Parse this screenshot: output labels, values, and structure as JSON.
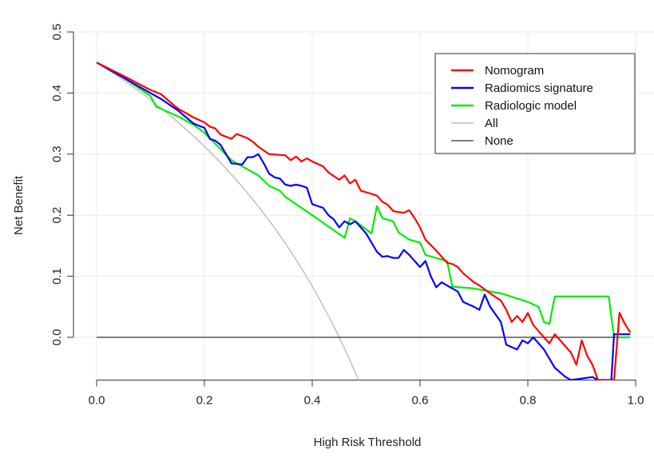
{
  "chart_data": {
    "type": "line",
    "title": "",
    "xlabel": "High Risk Threshold",
    "ylabel": "Net Benefit",
    "xlim": [
      0.0,
      1.0
    ],
    "ylim": [
      -0.07,
      0.5
    ],
    "x_ticks": [
      "0.0",
      "0.2",
      "0.4",
      "0.6",
      "0.8",
      "1.0"
    ],
    "y_ticks": [
      "0.0",
      "0.1",
      "0.2",
      "0.3",
      "0.4",
      "0.5"
    ],
    "grid": true,
    "legend_position": "top-right",
    "series": [
      {
        "name": "Nomogram",
        "color": "#ff0000",
        "points": [
          [
            0.0,
            0.45
          ],
          [
            0.05,
            0.428
          ],
          [
            0.1,
            0.405
          ],
          [
            0.12,
            0.398
          ],
          [
            0.13,
            0.39
          ],
          [
            0.15,
            0.375
          ],
          [
            0.18,
            0.36
          ],
          [
            0.2,
            0.352
          ],
          [
            0.21,
            0.345
          ],
          [
            0.22,
            0.342
          ],
          [
            0.23,
            0.332
          ],
          [
            0.25,
            0.325
          ],
          [
            0.26,
            0.333
          ],
          [
            0.28,
            0.326
          ],
          [
            0.29,
            0.32
          ],
          [
            0.3,
            0.312
          ],
          [
            0.32,
            0.3
          ],
          [
            0.35,
            0.298
          ],
          [
            0.36,
            0.29
          ],
          [
            0.37,
            0.296
          ],
          [
            0.38,
            0.288
          ],
          [
            0.39,
            0.293
          ],
          [
            0.4,
            0.288
          ],
          [
            0.42,
            0.28
          ],
          [
            0.43,
            0.27
          ],
          [
            0.45,
            0.258
          ],
          [
            0.46,
            0.265
          ],
          [
            0.47,
            0.252
          ],
          [
            0.48,
            0.258
          ],
          [
            0.49,
            0.24
          ],
          [
            0.51,
            0.235
          ],
          [
            0.52,
            0.232
          ],
          [
            0.53,
            0.222
          ],
          [
            0.54,
            0.217
          ],
          [
            0.55,
            0.207
          ],
          [
            0.56,
            0.205
          ],
          [
            0.57,
            0.204
          ],
          [
            0.58,
            0.208
          ],
          [
            0.59,
            0.195
          ],
          [
            0.6,
            0.18
          ],
          [
            0.61,
            0.16
          ],
          [
            0.63,
            0.142
          ],
          [
            0.65,
            0.122
          ],
          [
            0.66,
            0.12
          ],
          [
            0.67,
            0.115
          ],
          [
            0.68,
            0.105
          ],
          [
            0.7,
            0.09
          ],
          [
            0.71,
            0.085
          ],
          [
            0.73,
            0.072
          ],
          [
            0.75,
            0.06
          ],
          [
            0.76,
            0.045
          ],
          [
            0.77,
            0.025
          ],
          [
            0.78,
            0.035
          ],
          [
            0.79,
            0.025
          ],
          [
            0.8,
            0.04
          ],
          [
            0.81,
            0.02
          ],
          [
            0.83,
            0.0
          ],
          [
            0.84,
            -0.01
          ],
          [
            0.85,
            0.005
          ],
          [
            0.87,
            -0.015
          ],
          [
            0.88,
            -0.025
          ],
          [
            0.89,
            -0.045
          ],
          [
            0.9,
            -0.005
          ],
          [
            0.91,
            -0.03
          ],
          [
            0.92,
            -0.045
          ],
          [
            0.93,
            -0.07
          ],
          [
            0.955,
            -0.07
          ],
          [
            0.96,
            -0.07
          ],
          [
            0.97,
            0.04
          ],
          [
            0.98,
            0.022
          ],
          [
            0.99,
            0.008
          ]
        ]
      },
      {
        "name": "Radiomics signature",
        "color": "#0000ff",
        "points": [
          [
            0.0,
            0.45
          ],
          [
            0.05,
            0.425
          ],
          [
            0.1,
            0.4
          ],
          [
            0.12,
            0.39
          ],
          [
            0.15,
            0.372
          ],
          [
            0.18,
            0.35
          ],
          [
            0.2,
            0.343
          ],
          [
            0.21,
            0.325
          ],
          [
            0.22,
            0.322
          ],
          [
            0.23,
            0.315
          ],
          [
            0.25,
            0.285
          ],
          [
            0.27,
            0.283
          ],
          [
            0.28,
            0.295
          ],
          [
            0.29,
            0.295
          ],
          [
            0.3,
            0.3
          ],
          [
            0.31,
            0.285
          ],
          [
            0.32,
            0.268
          ],
          [
            0.33,
            0.262
          ],
          [
            0.34,
            0.26
          ],
          [
            0.35,
            0.25
          ],
          [
            0.36,
            0.248
          ],
          [
            0.37,
            0.25
          ],
          [
            0.38,
            0.248
          ],
          [
            0.39,
            0.245
          ],
          [
            0.4,
            0.218
          ],
          [
            0.42,
            0.212
          ],
          [
            0.43,
            0.2
          ],
          [
            0.44,
            0.193
          ],
          [
            0.45,
            0.18
          ],
          [
            0.46,
            0.19
          ],
          [
            0.47,
            0.185
          ],
          [
            0.48,
            0.19
          ],
          [
            0.5,
            0.17
          ],
          [
            0.52,
            0.14
          ],
          [
            0.53,
            0.132
          ],
          [
            0.54,
            0.133
          ],
          [
            0.55,
            0.13
          ],
          [
            0.56,
            0.13
          ],
          [
            0.57,
            0.143
          ],
          [
            0.58,
            0.135
          ],
          [
            0.6,
            0.115
          ],
          [
            0.61,
            0.125
          ],
          [
            0.62,
            0.1
          ],
          [
            0.63,
            0.082
          ],
          [
            0.64,
            0.09
          ],
          [
            0.65,
            0.085
          ],
          [
            0.66,
            0.08
          ],
          [
            0.67,
            0.075
          ],
          [
            0.68,
            0.058
          ],
          [
            0.7,
            0.05
          ],
          [
            0.71,
            0.045
          ],
          [
            0.72,
            0.07
          ],
          [
            0.73,
            0.05
          ],
          [
            0.75,
            0.025
          ],
          [
            0.76,
            -0.012
          ],
          [
            0.78,
            -0.02
          ],
          [
            0.79,
            -0.005
          ],
          [
            0.8,
            -0.01
          ],
          [
            0.81,
            0.0
          ],
          [
            0.83,
            -0.02
          ],
          [
            0.85,
            -0.05
          ],
          [
            0.87,
            -0.065
          ],
          [
            0.88,
            -0.07
          ],
          [
            0.92,
            -0.065
          ],
          [
            0.93,
            -0.07
          ],
          [
            0.955,
            -0.07
          ],
          [
            0.96,
            0.005
          ],
          [
            0.99,
            0.005
          ]
        ]
      },
      {
        "name": "Radiologic model",
        "color": "#00ee00",
        "points": [
          [
            0.0,
            0.45
          ],
          [
            0.05,
            0.425
          ],
          [
            0.1,
            0.395
          ],
          [
            0.11,
            0.378
          ],
          [
            0.15,
            0.362
          ],
          [
            0.18,
            0.348
          ],
          [
            0.2,
            0.335
          ],
          [
            0.25,
            0.29
          ],
          [
            0.3,
            0.265
          ],
          [
            0.32,
            0.248
          ],
          [
            0.34,
            0.24
          ],
          [
            0.35,
            0.23
          ],
          [
            0.4,
            0.2
          ],
          [
            0.46,
            0.163
          ],
          [
            0.47,
            0.195
          ],
          [
            0.48,
            0.19
          ],
          [
            0.51,
            0.17
          ],
          [
            0.52,
            0.215
          ],
          [
            0.53,
            0.195
          ],
          [
            0.55,
            0.19
          ],
          [
            0.56,
            0.172
          ],
          [
            0.58,
            0.16
          ],
          [
            0.6,
            0.155
          ],
          [
            0.61,
            0.135
          ],
          [
            0.65,
            0.125
          ],
          [
            0.66,
            0.083
          ],
          [
            0.7,
            0.08
          ],
          [
            0.75,
            0.072
          ],
          [
            0.8,
            0.058
          ],
          [
            0.82,
            0.05
          ],
          [
            0.83,
            0.025
          ],
          [
            0.84,
            0.022
          ],
          [
            0.85,
            0.067
          ],
          [
            0.95,
            0.067
          ],
          [
            0.96,
            0.0
          ],
          [
            0.99,
            0.0
          ]
        ]
      },
      {
        "name": "All",
        "color": "#c0c0c0",
        "formula": "0.45 - 0.55 * t / (1 - t)"
      },
      {
        "name": "None",
        "color": "#555555",
        "points": [
          [
            0.0,
            0.0
          ],
          [
            0.99,
            0.0
          ]
        ]
      }
    ]
  }
}
